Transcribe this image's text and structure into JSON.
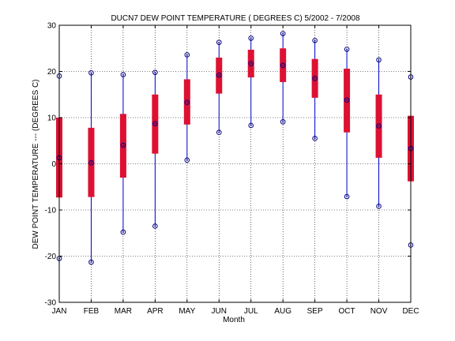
{
  "chart_data": {
    "type": "box",
    "title": "DUCN7  DEW POINT TEMPERATURE ( DEGREES C) 5/2002 - 7/2008",
    "xlabel": "Month",
    "ylabel": "DEW POINT TEMPERATURE --- (DEGREES C)",
    "ylim": [
      -30,
      30
    ],
    "yticks": [
      -30,
      -20,
      -10,
      0,
      10,
      20,
      30
    ],
    "grid": true,
    "categories": [
      "JAN",
      "FEB",
      "MAR",
      "APR",
      "MAY",
      "JUN",
      "JUL",
      "AUG",
      "SEP",
      "OCT",
      "NOV",
      "DEC"
    ],
    "series": [
      {
        "values": [
          {
            "min": -20.5,
            "q1": -7.3,
            "median": 1.3,
            "q3": 10.0,
            "max": 19.0
          },
          {
            "min": -21.3,
            "q1": -7.2,
            "median": 0.2,
            "q3": 7.8,
            "max": 19.7
          },
          {
            "min": -14.8,
            "q1": -3.0,
            "median": 4.0,
            "q3": 10.8,
            "max": 19.3
          },
          {
            "min": -13.5,
            "q1": 2.2,
            "median": 8.7,
            "q3": 15.0,
            "max": 19.8
          },
          {
            "min": 0.8,
            "q1": 8.5,
            "median": 13.3,
            "q3": 18.3,
            "max": 23.6
          },
          {
            "min": 6.8,
            "q1": 15.2,
            "median": 19.2,
            "q3": 23.0,
            "max": 26.3
          },
          {
            "min": 8.3,
            "q1": 18.7,
            "median": 21.7,
            "q3": 24.7,
            "max": 27.2
          },
          {
            "min": 9.1,
            "q1": 17.7,
            "median": 21.3,
            "q3": 25.0,
            "max": 28.2
          },
          {
            "min": 5.5,
            "q1": 14.3,
            "median": 18.5,
            "q3": 22.7,
            "max": 26.7
          },
          {
            "min": -7.1,
            "q1": 6.8,
            "median": 13.8,
            "q3": 20.6,
            "max": 24.8
          },
          {
            "min": -9.2,
            "q1": 1.3,
            "median": 8.2,
            "q3": 15.0,
            "max": 22.5
          },
          {
            "min": -17.6,
            "q1": -3.8,
            "median": 3.3,
            "q3": 10.4,
            "max": 18.8
          }
        ]
      }
    ],
    "colors": {
      "whisker": "#0000cc",
      "box": "#dd1133",
      "marker": "#000080",
      "axis": "#000000"
    }
  }
}
